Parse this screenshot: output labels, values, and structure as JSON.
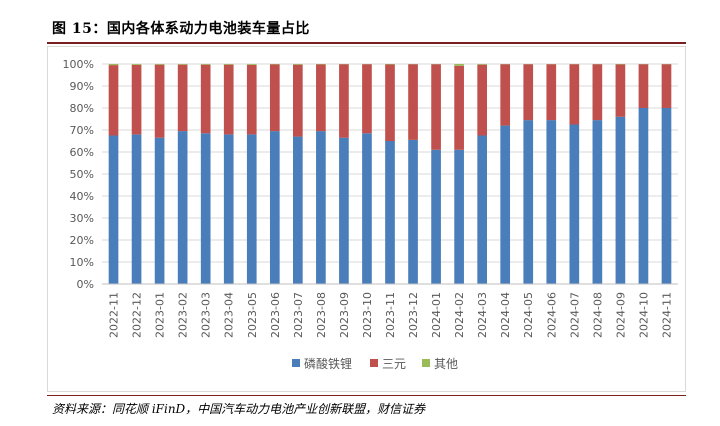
{
  "figure": {
    "title": "图 15：国内各体系动力电池装车量占比",
    "source": "资料来源：同花顺 iFinD，中国汽车动力电池产业创新联盟，财信证券"
  },
  "chart_data": {
    "type": "bar",
    "stacked": true,
    "title": "国内各体系动力电池装车量占比",
    "xlabel": "",
    "ylabel": "",
    "ylim": [
      0,
      100
    ],
    "y_ticks": [
      "0%",
      "10%",
      "20%",
      "30%",
      "40%",
      "50%",
      "60%",
      "70%",
      "80%",
      "90%",
      "100%"
    ],
    "grid": true,
    "legend_position": "bottom",
    "categories": [
      "2022-11",
      "2022-12",
      "2023-01",
      "2023-02",
      "2023-03",
      "2023-04",
      "2023-05",
      "2023-06",
      "2023-07",
      "2023-08",
      "2023-09",
      "2023-10",
      "2023-11",
      "2023-12",
      "2024-01",
      "2024-02",
      "2024-03",
      "2024-04",
      "2024-05",
      "2024-06",
      "2024-07",
      "2024-08",
      "2024-09",
      "2024-10",
      "2024-11"
    ],
    "series": [
      {
        "name": "磷酸铁锂",
        "color": "#4a7ebb",
        "values": [
          67.5,
          68,
          66.5,
          69.5,
          68.5,
          68,
          68,
          69.5,
          67,
          69.5,
          66.5,
          68.5,
          65,
          65.5,
          61,
          61,
          67.5,
          72,
          74.5,
          74.5,
          72.5,
          74.5,
          76,
          80,
          80
        ]
      },
      {
        "name": "三元",
        "color": "#c0504d",
        "values": [
          32,
          31.6,
          33.2,
          30.2,
          31.2,
          31.7,
          31.6,
          30.3,
          32.7,
          30.3,
          33.4,
          31.4,
          34.8,
          34.4,
          38.9,
          38.2,
          32.2,
          27.9,
          25.4,
          25.4,
          27.4,
          25.4,
          23.8,
          19.9,
          19.9
        ]
      },
      {
        "name": "其他",
        "color": "#9bbb59",
        "values": [
          0.5,
          0.4,
          0.3,
          0.3,
          0.3,
          0.3,
          0.4,
          0.2,
          0.3,
          0.2,
          0.1,
          0.1,
          0.2,
          0.1,
          0.1,
          0.8,
          0.3,
          0.1,
          0.1,
          0.1,
          0.1,
          0.1,
          0.2,
          0.1,
          0.1
        ]
      }
    ]
  }
}
